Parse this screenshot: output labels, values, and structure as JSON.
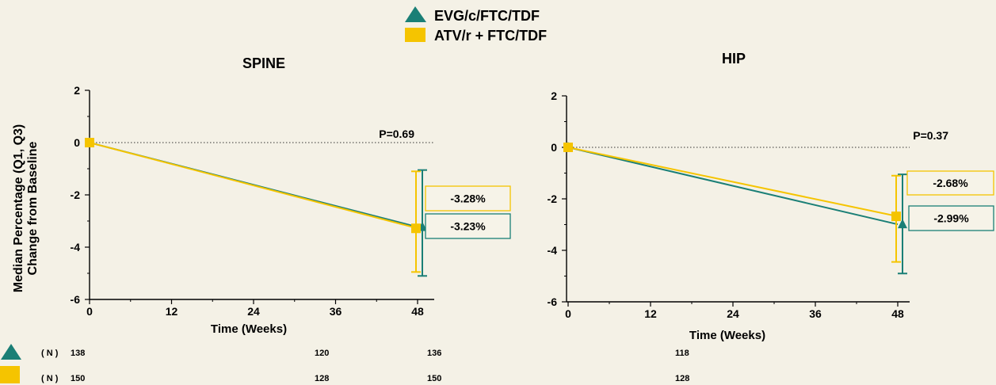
{
  "legend": [
    {
      "name": "EVG/c/FTC/TDF",
      "marker": "triangle",
      "color": "#1a7f76"
    },
    {
      "name": "ATV/r + FTC/TDF",
      "marker": "square",
      "color": "#f5c400"
    }
  ],
  "ylabel_shared": [
    "Median Percentage (Q1, Q3)",
    "Change from Baseline"
  ],
  "n_rows": [
    {
      "marker": "triangle",
      "label": "( N )",
      "spine": [
        "138",
        "120"
      ],
      "hip": [
        "136",
        "118"
      ]
    },
    {
      "marker": "square",
      "label": "( N )",
      "spine": [
        "150",
        "128"
      ],
      "hip": [
        "150",
        "128"
      ]
    }
  ],
  "chart_data": [
    {
      "type": "line",
      "title": "SPINE",
      "xlabel": "Time  (Weeks)",
      "ylabel": "Median Percentage (Q1, Q3) Change from Baseline",
      "xticks": [
        0,
        12,
        24,
        36,
        48
      ],
      "yticks": [
        2,
        0,
        -2,
        -4,
        -6
      ],
      "xlim": [
        0,
        50
      ],
      "ylim": [
        -6,
        2
      ],
      "pvalue": "P=0.69",
      "series": [
        {
          "name": "EVG/c/FTC/TDF",
          "x": [
            0,
            48
          ],
          "y": [
            0,
            -3.23
          ],
          "q1": -5.1,
          "q3": -1.05,
          "label": "-3.23%"
        },
        {
          "name": "ATV/r + FTC/TDF",
          "x": [
            0,
            48
          ],
          "y": [
            0,
            -3.28
          ],
          "q1": -4.95,
          "q3": -1.1,
          "label": "-3.28%"
        }
      ]
    },
    {
      "type": "line",
      "title": "HIP",
      "xlabel": "Time  (Weeks)",
      "ylabel": "",
      "xticks": [
        0,
        12,
        24,
        36,
        48
      ],
      "yticks": [
        2,
        0,
        -2,
        -4,
        -6
      ],
      "xlim": [
        0,
        50
      ],
      "ylim": [
        -6,
        2
      ],
      "pvalue": "P=0.37",
      "series": [
        {
          "name": "EVG/c/FTC/TDF",
          "x": [
            0,
            48
          ],
          "y": [
            0,
            -2.99
          ],
          "q1": -4.9,
          "q3": -1.05,
          "label": "-2.99%"
        },
        {
          "name": "ATV/r + FTC/TDF",
          "x": [
            0,
            48
          ],
          "y": [
            0,
            -2.68
          ],
          "q1": -4.45,
          "q3": -1.1,
          "label": "-2.68%"
        }
      ]
    }
  ]
}
